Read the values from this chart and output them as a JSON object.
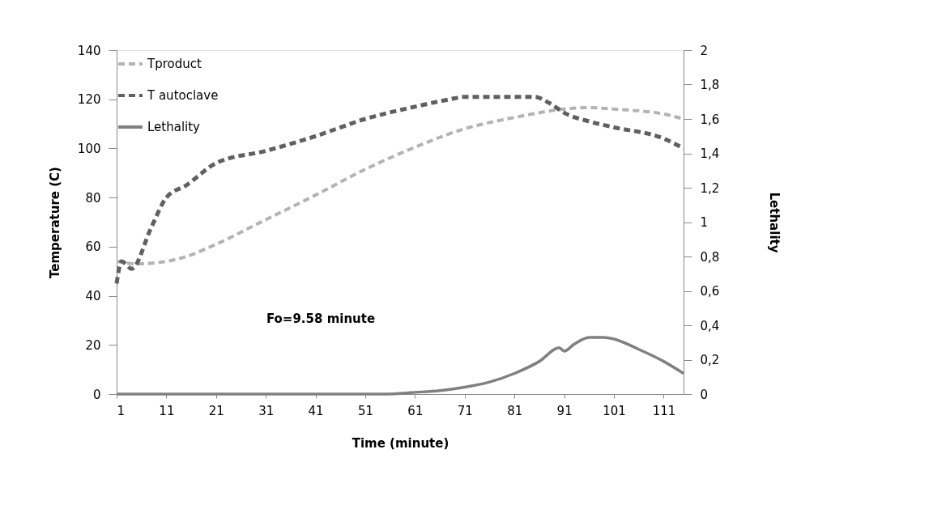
{
  "chart_data": {
    "type": "line",
    "xlabel": "Time (minute)",
    "ylabel": "Temperature (C)",
    "y2label": "Lethality",
    "xlim": [
      1,
      115
    ],
    "xticks": [
      1,
      11,
      21,
      31,
      41,
      51,
      61,
      71,
      81,
      91,
      101,
      111
    ],
    "ylim": [
      0,
      140
    ],
    "yticks": [
      0,
      20,
      40,
      60,
      80,
      100,
      120,
      140
    ],
    "y2lim": [
      0,
      2
    ],
    "y2ticks": [
      0,
      {
        "value": 0.2,
        "label": "0,2"
      },
      {
        "value": 0.4,
        "label": "0,4"
      },
      {
        "value": 0.6,
        "label": "0,6"
      },
      {
        "value": 0.8,
        "label": "0,8"
      },
      1,
      {
        "value": 1.2,
        "label": "1,2"
      },
      {
        "value": 1.4,
        "label": "1,4"
      },
      {
        "value": 1.6,
        "label": "1,6"
      },
      {
        "value": 1.8,
        "label": "1,8"
      },
      2
    ],
    "grid": false,
    "legend": "top left",
    "annotations": [
      "Fo=9.58 minute"
    ],
    "series": [
      {
        "name": "Tproduct",
        "color": "#b3b3b3",
        "line_style": "dashed",
        "x": [
          1,
          5,
          11,
          15,
          21,
          31,
          41,
          51,
          61,
          71,
          81,
          91,
          96,
          101,
          111,
          115
        ],
        "values": [
          54,
          53,
          54,
          56,
          61,
          71,
          81,
          91.5,
          100.5,
          108,
          112.6,
          116,
          116.6,
          116,
          114,
          112
        ]
      },
      {
        "name": "T autoclave",
        "color": "#606060",
        "line_style": "dashed",
        "x": [
          1,
          2,
          4,
          8,
          11,
          15,
          21,
          31,
          41,
          51,
          61,
          68,
          71,
          85,
          88,
          91,
          96,
          101,
          111,
          115
        ],
        "values": [
          45,
          54,
          51,
          68,
          80,
          85,
          94,
          99,
          105,
          112,
          117,
          120,
          121,
          121,
          118.5,
          114.5,
          111,
          108.6,
          104,
          100
        ]
      },
      {
        "name": "Lethality",
        "color": "#808080",
        "line_style": "solid",
        "axis": "y2",
        "x": [
          1,
          55,
          61,
          66,
          71,
          76,
          81,
          86,
          90,
          91,
          93,
          96,
          99,
          101,
          106,
          111,
          115
        ],
        "values": [
          0,
          0,
          0.01,
          0.02,
          0.04,
          0.07,
          0.12,
          0.19,
          0.27,
          0.25,
          0.29,
          0.33,
          0.33,
          0.32,
          0.26,
          0.19,
          0.12
        ]
      }
    ]
  }
}
